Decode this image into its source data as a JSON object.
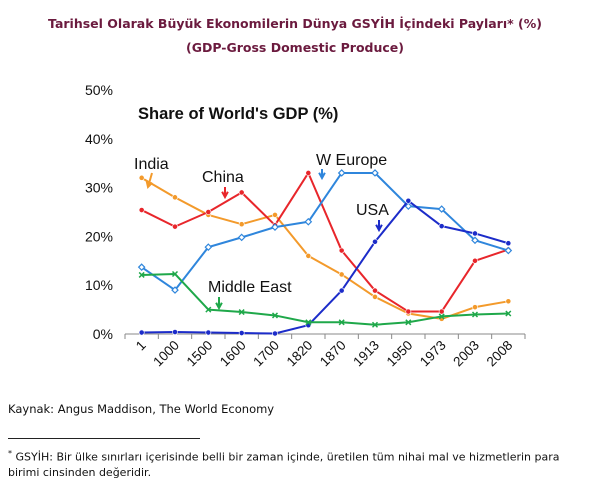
{
  "header": {
    "title": "Tarihsel Olarak Büyük Ekonomilerin Dünya GSYİH İçindeki Payları* (%)",
    "subtitle": "(GDP-Gross Domestic Produce)"
  },
  "chart_data": {
    "type": "line",
    "title": "Share of World's GDP (%)",
    "categories": [
      "1",
      "1000",
      "1500",
      "1600",
      "1700",
      "1820",
      "1870",
      "1913",
      "1950",
      "1973",
      "2003",
      "2008"
    ],
    "yticks": [
      "0%",
      "10%",
      "20%",
      "30%",
      "40%",
      "50%"
    ],
    "ylim": [
      0,
      50
    ],
    "grid": false,
    "series": [
      {
        "name": "India",
        "color": "#f39a2b",
        "values": [
          32,
          28,
          24.4,
          22.5,
          24.4,
          16,
          12.2,
          7.6,
          4.2,
          3.1,
          5.5,
          6.7
        ]
      },
      {
        "name": "China",
        "color": "#e8262b",
        "values": [
          25.4,
          22,
          25,
          29,
          22.3,
          33,
          17.1,
          8.9,
          4.6,
          4.6,
          15,
          17.3
        ]
      },
      {
        "name": "W Europe",
        "color": "#2f86dc",
        "values": [
          13.7,
          9,
          17.8,
          19.8,
          21.9,
          23,
          33,
          33,
          26.2,
          25.6,
          19.2,
          17.1
        ]
      },
      {
        "name": "USA",
        "color": "#1c2cc9",
        "values": [
          0.3,
          0.4,
          0.3,
          0.2,
          0.1,
          1.8,
          8.9,
          18.9,
          27.3,
          22.1,
          20.6,
          18.6
        ]
      },
      {
        "name": "Middle East",
        "color": "#1fa84a",
        "values": [
          12.1,
          12.3,
          5,
          4.5,
          3.8,
          2.4,
          2.4,
          1.9,
          2.4,
          3.6,
          4,
          4.2
        ]
      }
    ]
  },
  "source": "Kaynak: Angus Maddison, The World Economy",
  "footnote": {
    "mark": "*",
    "text": " GSYİH: Bir ülke sınırları içerisinde belli bir zaman içinde, üretilen tüm nihai mal ve hizmetlerin para birimi cinsinden değeridir."
  }
}
